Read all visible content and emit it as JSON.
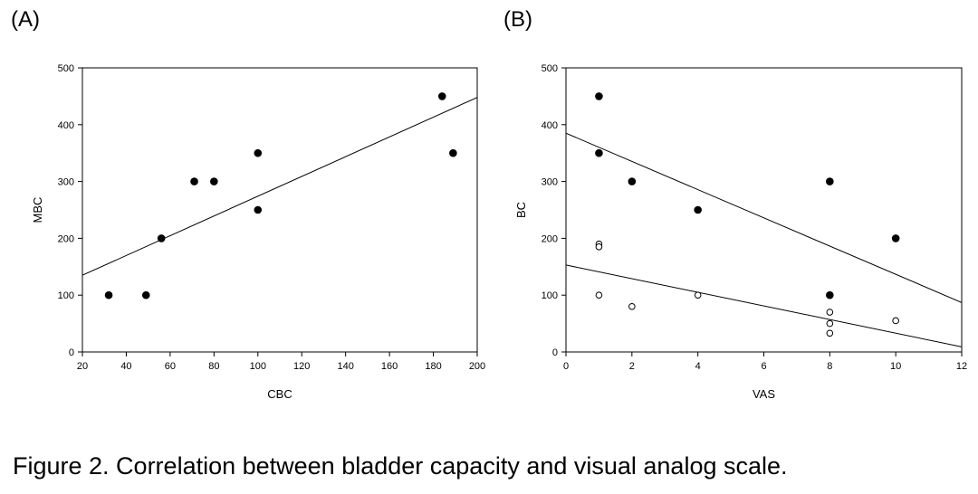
{
  "panels": [
    {
      "label": "(A)",
      "chart_data": {
        "type": "scatter",
        "title": "",
        "xlabel": "CBC",
        "ylabel": "MBC",
        "xlim": [
          20,
          200
        ],
        "ylim": [
          0,
          500
        ],
        "xticks": [
          20,
          40,
          60,
          80,
          100,
          120,
          140,
          160,
          180,
          200
        ],
        "yticks": [
          0,
          100,
          200,
          300,
          400,
          500
        ],
        "grid": false,
        "series": [
          {
            "marker": "filled-circle",
            "points": [
              [
                32,
                100
              ],
              [
                49,
                100
              ],
              [
                56,
                200
              ],
              [
                71,
                300
              ],
              [
                80,
                300
              ],
              [
                100,
                350
              ],
              [
                100,
                250
              ],
              [
                184,
                450
              ],
              [
                189,
                350
              ]
            ]
          }
        ],
        "lines": [
          {
            "kind": "regression",
            "from": [
              20,
              135
            ],
            "to": [
              200,
              448
            ]
          }
        ]
      }
    },
    {
      "label": "(B)",
      "chart_data": {
        "type": "scatter",
        "title": "",
        "xlabel": "VAS",
        "ylabel": "BC",
        "xlim": [
          0,
          12
        ],
        "ylim": [
          0,
          500
        ],
        "xticks": [
          0,
          2,
          4,
          6,
          8,
          10,
          12
        ],
        "yticks": [
          0,
          100,
          200,
          300,
          400,
          500
        ],
        "grid": false,
        "series": [
          {
            "marker": "filled-circle",
            "points": [
              [
                1,
                450
              ],
              [
                1,
                350
              ],
              [
                2,
                300
              ],
              [
                4,
                250
              ],
              [
                8,
                300
              ],
              [
                8,
                100
              ],
              [
                10,
                200
              ]
            ]
          },
          {
            "marker": "open-circle",
            "points": [
              [
                1,
                190
              ],
              [
                1,
                185
              ],
              [
                1,
                100
              ],
              [
                2,
                80
              ],
              [
                4,
                100
              ],
              [
                8,
                70
              ],
              [
                8,
                50
              ],
              [
                8,
                33
              ],
              [
                10,
                55
              ]
            ]
          }
        ],
        "lines": [
          {
            "kind": "regression",
            "from": [
              0,
              385
            ],
            "to": [
              12,
              87
            ]
          },
          {
            "kind": "regression",
            "from": [
              0,
              153
            ],
            "to": [
              12,
              9
            ]
          }
        ]
      }
    }
  ],
  "caption": "Figure 2. Correlation between bladder capacity and visual analog scale."
}
